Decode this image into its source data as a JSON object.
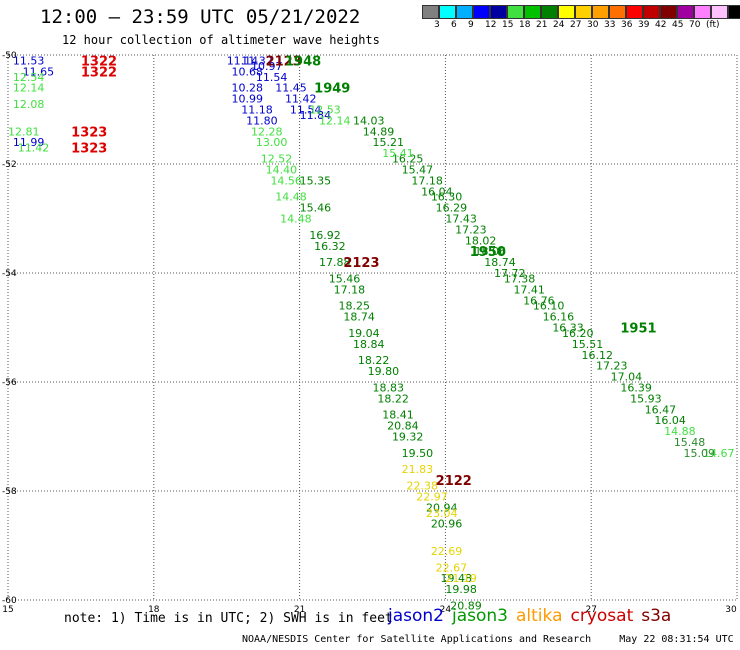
{
  "header": {
    "title": "12:00 – 23:59 UTC 05/21/2022",
    "subtitle": "12 hour collection of altimeter wave heights"
  },
  "colorbar": {
    "colors": [
      "#808080",
      "#00ffff",
      "#00b0ff",
      "#0000ff",
      "#0000a0",
      "#40e040",
      "#00c000",
      "#008000",
      "#ffff00",
      "#ffd000",
      "#ffa000",
      "#ff7000",
      "#ff0000",
      "#c00000",
      "#800000",
      "#a000a0",
      "#ff80ff",
      "#ffc0ff",
      "#000000"
    ],
    "labels": [
      "3",
      "6",
      "9",
      "12",
      "15",
      "18",
      "21",
      "24",
      "27",
      "30",
      "33",
      "36",
      "39",
      "42",
      "45",
      "70",
      "(ft)"
    ]
  },
  "chart_data": {
    "type": "scatter",
    "title": "12:00 – 23:59 UTC 05/21/2022",
    "subtitle": "12 hour collection of altimeter wave heights",
    "xlim": [
      15,
      30
    ],
    "ylim": [
      -60,
      -50
    ],
    "x_ticks": [
      "15",
      "18",
      "21",
      "24",
      "27",
      "30"
    ],
    "y_ticks": [
      "-50",
      "-52",
      "-54",
      "-56",
      "-58",
      "-60"
    ],
    "grid": true,
    "pass_labels": [
      {
        "text": "1322",
        "x": 16.5,
        "y": -50.1,
        "color": "#dd0000"
      },
      {
        "text": "1322",
        "x": 16.5,
        "y": -50.3,
        "color": "#dd0000"
      },
      {
        "text": "1323",
        "x": 16.3,
        "y": -51.4,
        "color": "#dd0000"
      },
      {
        "text": "1323",
        "x": 16.3,
        "y": -51.7,
        "color": "#dd0000"
      },
      {
        "text": "2123",
        "x": 20.3,
        "y": -50.1,
        "color": "#800000"
      },
      {
        "text": "1948",
        "x": 20.7,
        "y": -50.1,
        "color": "#008000"
      },
      {
        "text": "1949",
        "x": 21.3,
        "y": -50.6,
        "color": "#008000"
      },
      {
        "text": "1950",
        "x": 24.5,
        "y": -53.6,
        "color": "#008000"
      },
      {
        "text": "1951",
        "x": 27.6,
        "y": -55.0,
        "color": "#008000"
      },
      {
        "text": "2123",
        "x": 21.9,
        "y": -53.8,
        "color": "#800000"
      },
      {
        "text": "2122",
        "x": 23.8,
        "y": -57.8,
        "color": "#800000"
      }
    ],
    "series": [
      {
        "name": "jason2",
        "color": "#0000cc",
        "points": [
          {
            "x": 15.1,
            "y": -50.1,
            "v": "11.53"
          },
          {
            "x": 15.3,
            "y": -50.3,
            "v": "11.65"
          },
          {
            "x": 15.1,
            "y": -51.6,
            "v": "11.99"
          },
          {
            "x": 19.5,
            "y": -50.1,
            "v": "11.14"
          },
          {
            "x": 19.8,
            "y": -50.1,
            "v": "11.32"
          },
          {
            "x": 20.0,
            "y": -50.2,
            "v": "10.97"
          },
          {
            "x": 19.6,
            "y": -50.3,
            "v": "10.68"
          },
          {
            "x": 20.1,
            "y": -50.4,
            "v": "11.54"
          },
          {
            "x": 19.6,
            "y": -50.6,
            "v": "10.28"
          },
          {
            "x": 20.5,
            "y": -50.6,
            "v": "11.45"
          },
          {
            "x": 20.7,
            "y": -50.8,
            "v": "11.42"
          },
          {
            "x": 19.6,
            "y": -50.8,
            "v": "10.99"
          },
          {
            "x": 20.8,
            "y": -51.0,
            "v": "11.54"
          },
          {
            "x": 19.8,
            "y": -51.0,
            "v": "11.18"
          },
          {
            "x": 21.0,
            "y": -51.1,
            "v": "11.84"
          },
          {
            "x": 19.9,
            "y": -51.2,
            "v": "11.80"
          }
        ]
      },
      {
        "name": "jason3",
        "color": "#008000",
        "points": [
          {
            "x": 21.0,
            "y": -52.3,
            "v": "15.35"
          },
          {
            "x": 21.0,
            "y": -52.8,
            "v": "15.46"
          },
          {
            "x": 21.2,
            "y": -53.3,
            "v": "16.92"
          },
          {
            "x": 21.3,
            "y": -53.5,
            "v": "16.32"
          },
          {
            "x": 21.4,
            "y": -53.8,
            "v": "17.88"
          },
          {
            "x": 21.6,
            "y": -54.1,
            "v": "15.46"
          },
          {
            "x": 21.7,
            "y": -54.3,
            "v": "17.18"
          },
          {
            "x": 21.8,
            "y": -54.6,
            "v": "18.25"
          },
          {
            "x": 21.9,
            "y": -54.8,
            "v": "18.74"
          },
          {
            "x": 22.0,
            "y": -55.1,
            "v": "19.04"
          },
          {
            "x": 22.1,
            "y": -55.3,
            "v": "18.84"
          },
          {
            "x": 22.2,
            "y": -55.6,
            "v": "18.22"
          },
          {
            "x": 22.4,
            "y": -55.8,
            "v": "19.80"
          },
          {
            "x": 22.5,
            "y": -56.1,
            "v": "18.83"
          },
          {
            "x": 22.6,
            "y": -56.3,
            "v": "18.22"
          },
          {
            "x": 22.7,
            "y": -56.6,
            "v": "18.41"
          },
          {
            "x": 22.8,
            "y": -56.8,
            "v": "20.84"
          },
          {
            "x": 22.9,
            "y": -57.0,
            "v": "19.32"
          },
          {
            "x": 23.1,
            "y": -57.3,
            "v": "19.50"
          },
          {
            "x": 23.6,
            "y": -58.3,
            "v": "20.94"
          },
          {
            "x": 23.7,
            "y": -58.6,
            "v": "20.96"
          },
          {
            "x": 23.9,
            "y": -59.6,
            "v": "19.48"
          },
          {
            "x": 24.0,
            "y": -59.8,
            "v": "19.98"
          },
          {
            "x": 24.1,
            "y": -60.1,
            "v": "20.89"
          },
          {
            "x": 22.1,
            "y": -51.2,
            "v": "14.03"
          },
          {
            "x": 22.3,
            "y": -51.4,
            "v": "14.89"
          },
          {
            "x": 22.5,
            "y": -51.6,
            "v": "15.21"
          },
          {
            "x": 22.9,
            "y": -51.9,
            "v": "16.25"
          },
          {
            "x": 23.1,
            "y": -52.1,
            "v": "15.47"
          },
          {
            "x": 23.3,
            "y": -52.3,
            "v": "17.18"
          },
          {
            "x": 23.5,
            "y": -52.5,
            "v": "16.04"
          },
          {
            "x": 23.7,
            "y": -52.6,
            "v": "16.30"
          },
          {
            "x": 23.8,
            "y": -52.8,
            "v": "16.29"
          },
          {
            "x": 24.0,
            "y": -53.0,
            "v": "17.43"
          },
          {
            "x": 24.2,
            "y": -53.2,
            "v": "17.23"
          },
          {
            "x": 24.4,
            "y": -53.4,
            "v": "18.02"
          },
          {
            "x": 24.6,
            "y": -53.6,
            "v": "18.06"
          },
          {
            "x": 24.8,
            "y": -53.8,
            "v": "18.74"
          },
          {
            "x": 25.0,
            "y": -54.0,
            "v": "17.72"
          },
          {
            "x": 25.2,
            "y": -54.1,
            "v": "17.38"
          },
          {
            "x": 25.4,
            "y": -54.3,
            "v": "17.41"
          },
          {
            "x": 25.6,
            "y": -54.5,
            "v": "16.76"
          },
          {
            "x": 25.8,
            "y": -54.6,
            "v": "16.10"
          },
          {
            "x": 26.0,
            "y": -54.8,
            "v": "16.16"
          },
          {
            "x": 26.2,
            "y": -55.0,
            "v": "16.33"
          },
          {
            "x": 26.4,
            "y": -55.1,
            "v": "16.20"
          },
          {
            "x": 26.6,
            "y": -55.3,
            "v": "15.51"
          },
          {
            "x": 26.8,
            "y": -55.5,
            "v": "16.12"
          },
          {
            "x": 27.1,
            "y": -55.7,
            "v": "17.23"
          },
          {
            "x": 27.4,
            "y": -55.9,
            "v": "17.04"
          },
          {
            "x": 27.6,
            "y": -56.1,
            "v": "16.39"
          },
          {
            "x": 27.8,
            "y": -56.3,
            "v": "15.93"
          },
          {
            "x": 28.1,
            "y": -56.5,
            "v": "16.47"
          },
          {
            "x": 28.3,
            "y": -56.7,
            "v": "16.04"
          }
        ]
      },
      {
        "name": "jason3 (light)",
        "color": "#40e040",
        "points": [
          {
            "x": 15.1,
            "y": -50.4,
            "v": "12.54"
          },
          {
            "x": 15.1,
            "y": -50.6,
            "v": "12.14"
          },
          {
            "x": 15.1,
            "y": -50.9,
            "v": "12.08"
          },
          {
            "x": 15.0,
            "y": -51.4,
            "v": "12.81"
          },
          {
            "x": 15.2,
            "y": -51.7,
            "v": "11.42"
          },
          {
            "x": 20.0,
            "y": -51.4,
            "v": "12.28"
          },
          {
            "x": 20.1,
            "y": -51.6,
            "v": "13.00"
          },
          {
            "x": 20.2,
            "y": -51.9,
            "v": "12.52"
          },
          {
            "x": 20.3,
            "y": -52.1,
            "v": "14.40"
          },
          {
            "x": 20.4,
            "y": -52.3,
            "v": "14.56"
          },
          {
            "x": 20.5,
            "y": -52.6,
            "v": "14.48"
          },
          {
            "x": 20.6,
            "y": -53.0,
            "v": "14.48"
          },
          {
            "x": 21.2,
            "y": -51.0,
            "v": "12.53"
          },
          {
            "x": 21.4,
            "y": -51.2,
            "v": "12.14"
          },
          {
            "x": 22.7,
            "y": -51.8,
            "v": "15.41"
          },
          {
            "x": 28.5,
            "y": -56.9,
            "v": "14.88"
          },
          {
            "x": 29.3,
            "y": -57.3,
            "v": "14.67"
          }
        ]
      },
      {
        "name": "altika",
        "color": "#e6d400",
        "points": [
          {
            "x": 23.1,
            "y": -57.6,
            "v": "21.83"
          },
          {
            "x": 23.2,
            "y": -57.9,
            "v": "22.38"
          },
          {
            "x": 23.4,
            "y": -58.1,
            "v": "22.97"
          },
          {
            "x": 23.6,
            "y": -58.4,
            "v": "23.04"
          },
          {
            "x": 23.7,
            "y": -59.1,
            "v": "22.69"
          },
          {
            "x": 23.8,
            "y": -59.4,
            "v": "22.67"
          },
          {
            "x": 24.0,
            "y": -59.6,
            "v": "21.19"
          }
        ]
      },
      {
        "name": "jason3 (dark)",
        "color": "#2a8a2a",
        "points": [
          {
            "x": 28.7,
            "y": -57.1,
            "v": "15.48"
          },
          {
            "x": 28.9,
            "y": -57.3,
            "v": "15.09"
          }
        ]
      }
    ]
  },
  "note": "note: 1) Time is in UTC; 2) SWH is in feet",
  "satellites": [
    {
      "name": "jason2",
      "color": "#0000cc"
    },
    {
      "name": "jason3",
      "color": "#009900"
    },
    {
      "name": "altika",
      "color": "#ff9900"
    },
    {
      "name": "cryosat",
      "color": "#cc0000"
    },
    {
      "name": "s3a",
      "color": "#800000"
    }
  ],
  "footer": {
    "org": "NOAA/NESDIS Center for Satellite Applications and Research",
    "timestamp": "May 22 08:31:54 UTC 2022"
  }
}
